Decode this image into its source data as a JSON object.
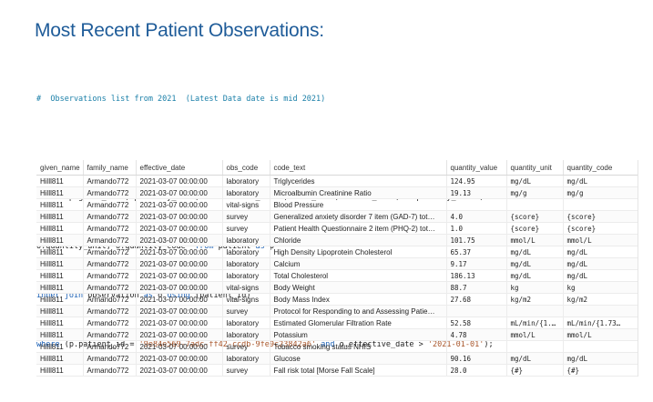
{
  "page": {
    "title": "Most Recent Patient Observations:"
  },
  "query": {
    "comment": "#  Observations list from 2021  (Latest Data date is mid 2021)",
    "line1": {
      "kw_select": "select",
      "rest": " p.given_name, p.family_name, o.effective_date ,o.obs_code, o.code_text, o.quantity_value,"
    },
    "line2": {
      "text1": "o.quantity_unit, o.quantity_code  ",
      "kw_from": "from",
      "text2": " patient ",
      "kw_as": "as",
      "text3": " p"
    },
    "line3": {
      "kw_inner_join": "inner join",
      "text1": " observation ",
      "kw_as": "as",
      "text2": " o ",
      "kw_using": "using",
      "text3": " (patient_id)"
    },
    "line4": {
      "kw_where": "where",
      "text1": " (p.patient_id = ",
      "str1": "'9e84e569-7adc-ff42-ccdb-9fe9c23842a6'",
      "text2": " ",
      "kw_and": "and",
      "text3": " o.effective_date > ",
      "str2": "'2021-01-01'",
      "text4": ");"
    }
  },
  "results": {
    "columns": [
      "given_name",
      "family_name",
      "effective_date",
      "obs_code",
      "code_text",
      "quantity_value",
      "quantity_unit",
      "quantity_code"
    ],
    "rows": [
      [
        "Hilll811",
        "Armando772",
        "2021-03-07 00:00:00",
        "laboratory",
        "Triglycerides",
        "124.95",
        "mg/dL",
        "mg/dL"
      ],
      [
        "Hilll811",
        "Armando772",
        "2021-03-07 00:00:00",
        "laboratory",
        "Microalbumin Creatinine Ratio",
        "19.13",
        "mg/g",
        "mg/g"
      ],
      [
        "Hilll811",
        "Armando772",
        "2021-03-07 00:00:00",
        "vital-signs",
        "Blood Pressure",
        "",
        "",
        ""
      ],
      [
        "Hilll811",
        "Armando772",
        "2021-03-07 00:00:00",
        "survey",
        "Generalized anxiety disorder 7 item (GAD-7) tot…",
        "4.0",
        "{score}",
        "{score}"
      ],
      [
        "Hilll811",
        "Armando772",
        "2021-03-07 00:00:00",
        "survey",
        "Patient Health Questionnaire 2 item (PHQ-2) tot…",
        "1.0",
        "{score}",
        "{score}"
      ],
      [
        "Hilll811",
        "Armando772",
        "2021-03-07 00:00:00",
        "laboratory",
        "Chloride",
        "101.75",
        "mmol/L",
        "mmol/L"
      ],
      [
        "Hilll811",
        "Armando772",
        "2021-03-07 00:00:00",
        "laboratory",
        "High Density Lipoprotein Cholesterol",
        "65.37",
        "mg/dL",
        "mg/dL"
      ],
      [
        "Hilll811",
        "Armando772",
        "2021-03-07 00:00:00",
        "laboratory",
        "Calcium",
        "9.17",
        "mg/dL",
        "mg/dL"
      ],
      [
        "Hilll811",
        "Armando772",
        "2021-03-07 00:00:00",
        "laboratory",
        "Total Cholesterol",
        "186.13",
        "mg/dL",
        "mg/dL"
      ],
      [
        "Hilll811",
        "Armando772",
        "2021-03-07 00:00:00",
        "vital-signs",
        "Body Weight",
        "88.7",
        "kg",
        "kg"
      ],
      [
        "Hilll811",
        "Armando772",
        "2021-03-07 00:00:00",
        "vital-signs",
        "Body Mass Index",
        "27.68",
        "kg/m2",
        "kg/m2"
      ],
      [
        "Hilll811",
        "Armando772",
        "2021-03-07 00:00:00",
        "survey",
        "Protocol for Responding to and Assessing Patie…",
        "",
        "",
        ""
      ],
      [
        "Hilll811",
        "Armando772",
        "2021-03-07 00:00:00",
        "laboratory",
        "Estimated Glomerular Filtration Rate",
        "52.58",
        "mL/min/{1.7…",
        "mL/min/{1.73…"
      ],
      [
        "Hilll811",
        "Armando772",
        "2021-03-07 00:00:00",
        "laboratory",
        "Potassium",
        "4.78",
        "mmol/L",
        "mmol/L"
      ],
      [
        "Hilll811",
        "Armando772",
        "2021-03-07 00:00:00",
        "survey",
        "Tobacco smoking status NHIS",
        "",
        "",
        ""
      ],
      [
        "Hilll811",
        "Armando772",
        "2021-03-07 00:00:00",
        "laboratory",
        "Glucose",
        "90.16",
        "mg/dL",
        "mg/dL"
      ],
      [
        "Hilll811",
        "Armando772",
        "2021-03-07 00:00:00",
        "survey",
        "Fall risk total [Morse Fall Scale]",
        "28.0",
        "{#}",
        "{#}"
      ]
    ]
  }
}
